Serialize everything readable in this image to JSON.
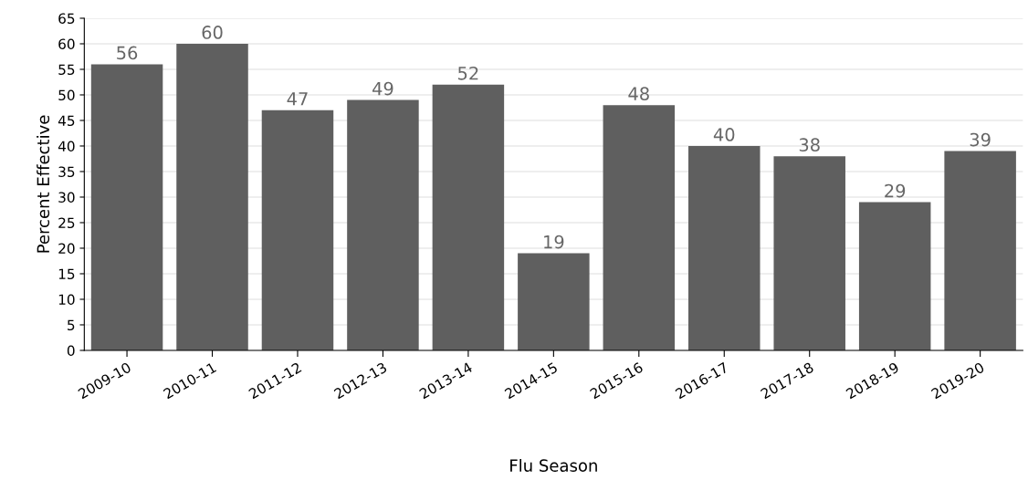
{
  "chart_data": {
    "type": "bar",
    "xlabel": "Flu Season",
    "ylabel": "Percent Effective",
    "categories": [
      "2009-10",
      "2010-11",
      "2011-12",
      "2012-13",
      "2013-14",
      "2014-15",
      "2015-16",
      "2016-17",
      "2017-18",
      "2018-19",
      "2019-20"
    ],
    "values": [
      56,
      60,
      47,
      49,
      52,
      19,
      48,
      40,
      38,
      29,
      39
    ],
    "color": "#5f5f5f",
    "ylim": [
      0,
      65
    ],
    "yticks": [
      0,
      5,
      10,
      15,
      20,
      25,
      30,
      35,
      40,
      45,
      50,
      55,
      60,
      65
    ],
    "grid": "y",
    "data_labels": true
  }
}
